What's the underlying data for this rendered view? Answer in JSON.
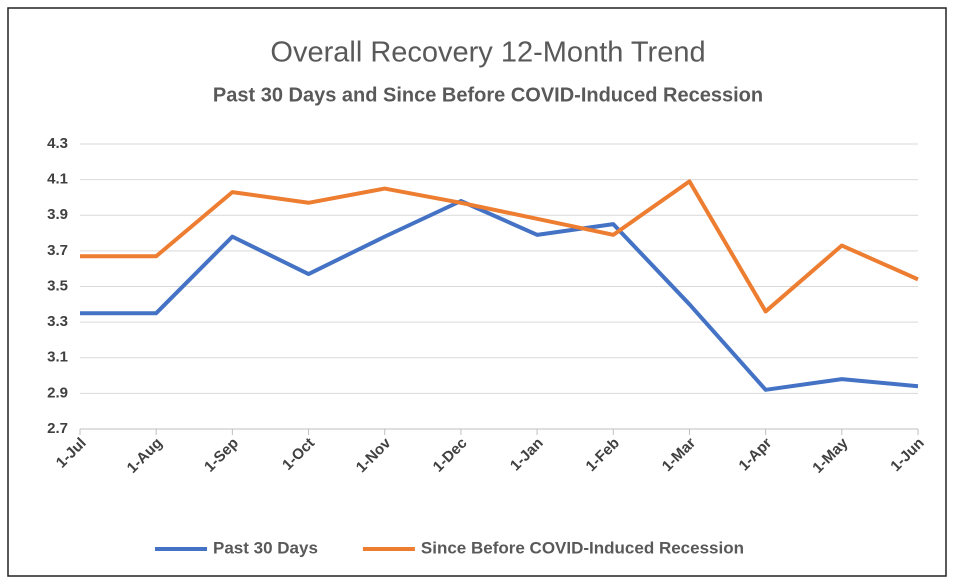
{
  "chart_data": {
    "type": "line",
    "title": "Overall Recovery 12-Month Trend",
    "subtitle": "Past 30 Days and Since Before COVID-Induced Recession",
    "categories": [
      "1-Jul",
      "1-Aug",
      "1-Sep",
      "1-Oct",
      "1-Nov",
      "1-Dec",
      "1-Jan",
      "1-Feb",
      "1-Mar",
      "1-Apr",
      "1-May",
      "1-Jun"
    ],
    "series": [
      {
        "name": "Past 30 Days",
        "color": "#4472c4",
        "values": [
          3.35,
          3.35,
          3.78,
          3.57,
          3.78,
          3.98,
          3.79,
          3.85,
          3.4,
          2.92,
          2.98,
          2.94
        ]
      },
      {
        "name": "Since Before COVID-Induced Recession",
        "color": "#ed7d31",
        "values": [
          3.67,
          3.67,
          4.03,
          3.97,
          4.05,
          3.97,
          3.88,
          3.79,
          4.09,
          3.36,
          3.73,
          3.54
        ]
      }
    ],
    "ylim": [
      2.7,
      4.3
    ],
    "yticks": [
      2.7,
      2.9,
      3.1,
      3.3,
      3.5,
      3.7,
      3.9,
      4.1,
      4.3
    ],
    "grid": true,
    "legend": "bottom"
  }
}
